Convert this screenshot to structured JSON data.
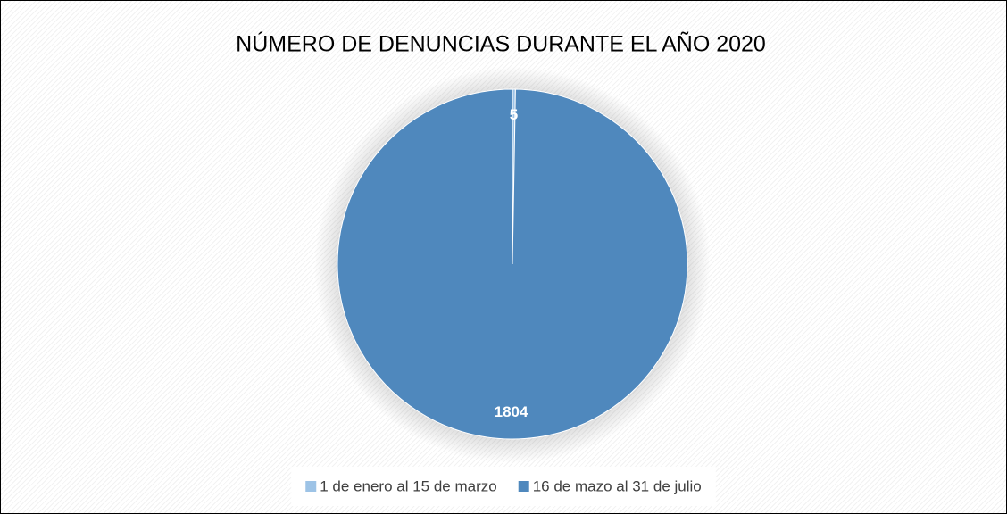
{
  "chart_data": {
    "type": "pie",
    "title": "NÚMERO DE DENUNCIAS DURANTE EL AÑO 2020",
    "categories": [
      "1 de enero al 15 de marzo",
      "16 de mazo al 31 de julio"
    ],
    "values": [
      5,
      1804
    ],
    "colors": [
      "#9dc3e6",
      "#4f88bd"
    ],
    "legend": "bottom"
  }
}
